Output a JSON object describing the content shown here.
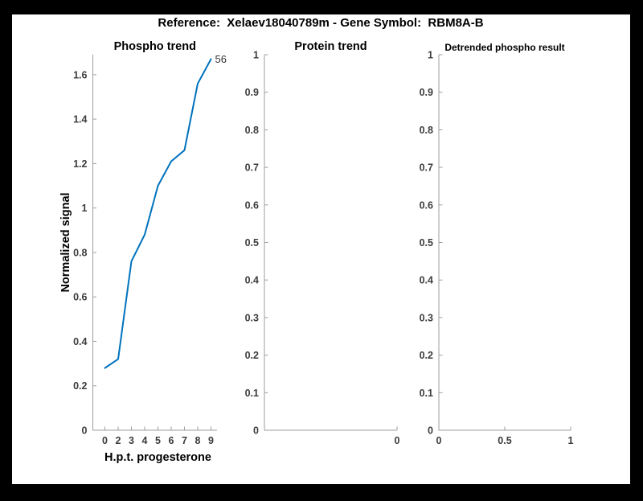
{
  "figure": {
    "title": "Reference:  Xelaev18040789m - Gene Symbol:  RBM8A-B",
    "frame_color": "#000000",
    "background_color": "#ffffff",
    "line_color": "#0072BD",
    "axis_color": "#9e9e9e",
    "tick_label_color": "#3c3c3c"
  },
  "chart_data": [
    {
      "type": "line",
      "title": "Phospho trend",
      "xlabel": "H.p.t. progesterone",
      "ylabel": "Normalized signal",
      "x_tick_labels": [
        "0",
        "2",
        "3",
        "4",
        "5",
        "6",
        "7",
        "8",
        "9"
      ],
      "values": [
        0.28,
        0.32,
        0.76,
        0.88,
        1.1,
        1.21,
        1.26,
        1.56,
        1.67
      ],
      "end_label": "56",
      "ylim": [
        0,
        1.69
      ],
      "ytick_values": [
        0,
        0.2,
        0.4,
        0.6,
        0.8,
        1,
        1.2,
        1.4,
        1.6
      ],
      "ytick_labels": [
        "0",
        "0.2",
        "0.4",
        "0.6",
        "0.8",
        "1",
        "1.2",
        "1.4",
        "1.6"
      ],
      "grid": false,
      "legend": null
    },
    {
      "type": "line",
      "title": "Protein trend",
      "xlabel": "",
      "ylabel": "",
      "x_tick_labels": [
        "0"
      ],
      "values": [],
      "ylim": [
        0,
        1
      ],
      "ytick_values": [
        0,
        0.1,
        0.2,
        0.3,
        0.4,
        0.5,
        0.6,
        0.7,
        0.8,
        0.9,
        1
      ],
      "ytick_labels": [
        "0",
        "0.1",
        "0.2",
        "0.3",
        "0.4",
        "0.5",
        "0.6",
        "0.7",
        "0.8",
        "0.9",
        "1"
      ],
      "grid": false,
      "legend": null
    },
    {
      "type": "line",
      "title": "Detrended phospho result",
      "xlabel": "",
      "ylabel": "",
      "x_tick_labels": [
        "0",
        "0.5",
        "1"
      ],
      "values": [],
      "ylim": [
        0,
        1
      ],
      "ytick_values": [
        0,
        0.1,
        0.2,
        0.3,
        0.4,
        0.5,
        0.6,
        0.7,
        0.8,
        0.9,
        1
      ],
      "ytick_labels": [
        "0",
        "0.1",
        "0.2",
        "0.3",
        "0.4",
        "0.5",
        "0.6",
        "0.7",
        "0.8",
        "0.9",
        "1"
      ],
      "grid": false,
      "legend": null
    }
  ]
}
